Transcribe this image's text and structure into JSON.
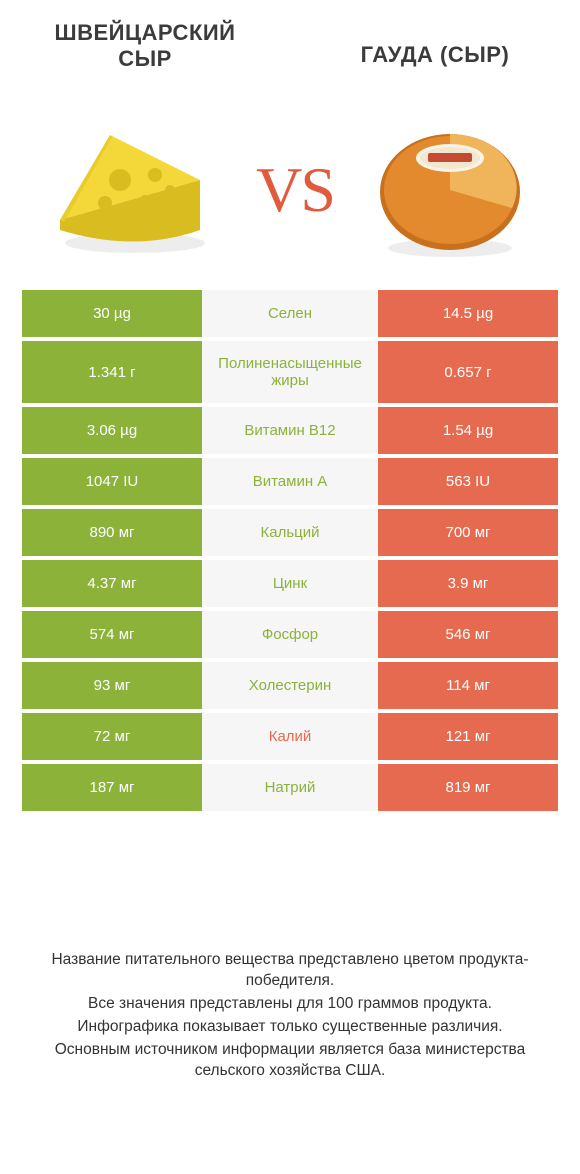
{
  "colors": {
    "green": "#8cb23a",
    "red": "#e66a4f",
    "vs": "#e25a3e",
    "text": "#333333",
    "title": "#3b3b3b",
    "row_bg": "#f6f6f6",
    "cheese_yellow": "#f4d738",
    "cheese_shadow": "#d9bc1f",
    "gouda_outer": "#e38a2e",
    "gouda_inner": "#f0b45a"
  },
  "header": {
    "left_title": "ШВЕЙЦАРСКИЙ\nСЫР",
    "right_title": "ГАУДА (СЫР)",
    "vs_label": "VS"
  },
  "table": {
    "left_color": "green",
    "right_color": "red",
    "rows": [
      {
        "left": "30 µg",
        "mid": "Селен",
        "winner": "green",
        "tall": false
      },
      {
        "left": "1.341 г",
        "mid": "Полиненасыщенные\nжиры",
        "winner": "green",
        "tall": true,
        "right": "0.657 г"
      },
      {
        "left": "3.06 µg",
        "mid": "Витамин B12",
        "winner": "green",
        "tall": false,
        "right": "1.54 µg"
      },
      {
        "left": "1047 IU",
        "mid": "Витамин A",
        "winner": "green",
        "tall": false,
        "right": "563 IU"
      },
      {
        "left": "890 мг",
        "mid": "Кальций",
        "winner": "green",
        "tall": false,
        "right": "700 мг"
      },
      {
        "left": "4.37 мг",
        "mid": "Цинк",
        "winner": "green",
        "tall": false,
        "right": "3.9 мг"
      },
      {
        "left": "574 мг",
        "mid": "Фосфор",
        "winner": "green",
        "tall": false,
        "right": "546 мг"
      },
      {
        "left": "93 мг",
        "mid": "Холестерин",
        "winner": "green",
        "tall": false,
        "right": "114 мг"
      },
      {
        "left": "72 мг",
        "mid": "Калий",
        "winner": "red",
        "tall": false,
        "right": "121 мг"
      },
      {
        "left": "187 мг",
        "mid": "Натрий",
        "winner": "green",
        "tall": false,
        "right": "819 мг"
      }
    ],
    "rows_fix": {
      "0_right": "14.5 µg"
    }
  },
  "footer": {
    "lines": [
      "Название питательного вещества представлено цветом продукта-победителя.",
      "Все значения представлены для 100 граммов продукта.",
      "Инфографика показывает только существенные различия.",
      "Основным источником информации является база министерства сельского хозяйства США."
    ]
  }
}
